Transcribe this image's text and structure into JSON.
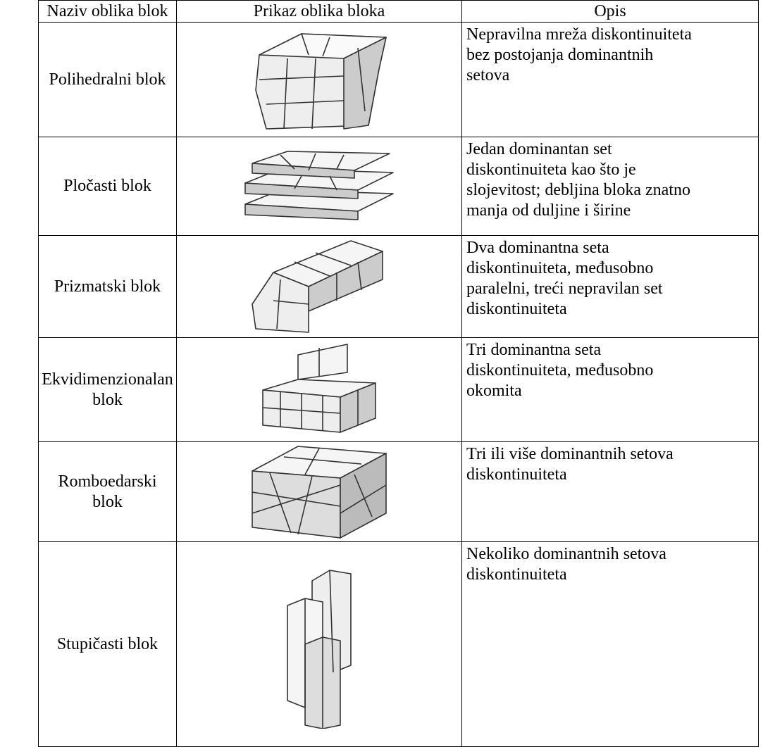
{
  "table": {
    "header": [
      "Naziv oblika blok",
      "Prikaz oblika bloka",
      "Opis"
    ],
    "rows": [
      {
        "name": [
          "Polihedralni blok"
        ],
        "description": [
          "Nepravilna mreža diskontinuiteta",
          "bez postojanja dominantnih",
          "setova"
        ]
      },
      {
        "name": [
          "Pločasti blok"
        ],
        "description": [
          "Jedan dominantan set",
          "diskontinuiteta kao što je",
          "slojevitost; debljina bloka znatno",
          "manja od duljine i širine"
        ]
      },
      {
        "name": [
          "Prizmatski blok"
        ],
        "description": [
          "Dva dominantna seta",
          "diskontinuiteta, međusobno",
          "paralelni, treći nepravilan set",
          "diskontinuiteta"
        ]
      },
      {
        "name": [
          "Ekvidimenzionalan",
          "blok"
        ],
        "description": [
          "Tri dominantna seta",
          "diskontinuiteta, međusobno",
          "okomita"
        ]
      },
      {
        "name": [
          "Romboedarski",
          "blok"
        ],
        "description": [
          "Tri ili više dominantnih setova",
          "diskontinuiteta"
        ]
      },
      {
        "name": [
          "Stupičasti blok"
        ],
        "description": [
          "Nekoliko dominantnih setova",
          "diskontinuiteta"
        ]
      }
    ]
  }
}
